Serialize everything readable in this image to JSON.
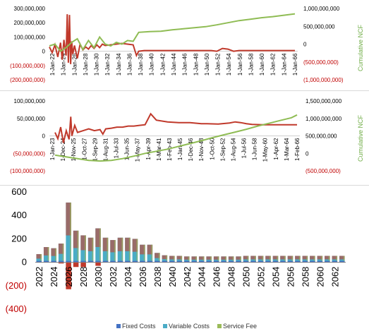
{
  "charts": [
    {
      "type": "line",
      "y2label": "Cumulative NCF",
      "yticks": [
        "300,000,000",
        "200,000,000",
        "100,000,000",
        "0",
        "(100,000,000)",
        "(200,000,000)"
      ],
      "yticks_neg": [
        false,
        false,
        false,
        false,
        true,
        true
      ],
      "y2ticks": [
        "1,000,000,000",
        "500,000,000",
        "0",
        "(500,000,000)",
        "(1,000,000,000)"
      ],
      "y2ticks_neg": [
        false,
        false,
        false,
        true,
        true
      ],
      "xticks": [
        "1-Jan-22",
        "1-Jan-24",
        "1-Jan-26",
        "1-Jan-28",
        "1-Jan-30",
        "1-Jan-32",
        "1-Jan-34",
        "1-Jan-36",
        "1-Jan-38",
        "1-Jan-40",
        "1-Jan-42",
        "1-Jan-44",
        "1-Jan-46",
        "1-Jan-48",
        "1-Jan-50",
        "1-Jan-52",
        "1-Jan-54",
        "1-Jan-56",
        "1-Jan-58",
        "1-Jan-60",
        "1-Jan-62",
        "1-Jan-64",
        "1-Jan-66"
      ]
    },
    {
      "type": "line",
      "y2label": "Cumulative NCF",
      "yticks": [
        "100,000,000",
        "50,000,000",
        "0",
        "(50,000,000)",
        "(100,000,000)"
      ],
      "yticks_neg": [
        false,
        false,
        false,
        true,
        true
      ],
      "y2ticks": [
        "1,500,000,000",
        "1,000,000,000",
        "500,000,000",
        "0",
        "(500,000,000)"
      ],
      "y2ticks_neg": [
        false,
        false,
        false,
        false,
        true
      ],
      "xticks": [
        "1-Jan-23",
        "1-Dec-24",
        "1-Nov-25",
        "1-Oct-27",
        "1-Sep-29",
        "1-Aug-31",
        "1-Jul-33",
        "1-Jun-35",
        "1-May-37",
        "1-Apr-39",
        "1-Mar-41",
        "1-Feb-43",
        "1-Jan-45",
        "1-Dec-46",
        "1-Nov-48",
        "1-Oct-50",
        "1-Sep-52",
        "1-Aug-54",
        "1-Jul-56",
        "1-Jun-58",
        "1-May-60",
        "1-Apr-62",
        "1-Mar-64",
        "1-Feb-66"
      ]
    },
    {
      "type": "bar",
      "yticks": [
        "600",
        "400",
        "200",
        "0",
        "(200)",
        "(400)"
      ],
      "yticks_neg": [
        false,
        false,
        false,
        false,
        true,
        true
      ],
      "xticks": [
        "2022",
        "2024",
        "2026",
        "2028",
        "2030",
        "2032",
        "2034",
        "2036",
        "2038",
        "2040",
        "2042",
        "2044",
        "2046",
        "2048",
        "2050",
        "2052",
        "2054",
        "2056",
        "2058",
        "2060",
        "2062"
      ],
      "legend": [
        "Fixed Costs",
        "Variable Costs",
        "Service Fee"
      ],
      "colors": {
        "fixed": "#4472c4",
        "variable": "#4bacc6",
        "service": "#9bbb59",
        "red": "#c0392b"
      }
    }
  ],
  "chart_data": [
    {
      "type": "line",
      "ylim": [
        -200000000,
        300000000
      ],
      "y2lim": [
        -1000000000,
        1000000000
      ],
      "series": [
        {
          "color": "#c0392b",
          "axis": "y",
          "x": [
            2022,
            2022.5,
            2023,
            2023.5,
            2024,
            2024.3,
            2024.6,
            2025,
            2025.2,
            2025.4,
            2025.6,
            2025.8,
            2026,
            2026.2,
            2026.5,
            2027,
            2027.5,
            2028,
            2028.5,
            2029,
            2029.5,
            2030,
            2030.5,
            2031,
            2031.5,
            2032,
            2033,
            2034,
            2035,
            2036,
            2037,
            2037.6,
            2038,
            2039,
            2040,
            2042,
            2044,
            2046,
            2048,
            2050,
            2051,
            2052,
            2053,
            2054,
            2055,
            2056,
            2058,
            2060,
            2062,
            2064,
            2066
          ],
          "y": [
            30000000,
            -10000000,
            45000000,
            -40000000,
            60000000,
            -60000000,
            80000000,
            -30000000,
            260000000,
            -80000000,
            255000000,
            -90000000,
            70000000,
            -20000000,
            40000000,
            -50000000,
            50000000,
            10000000,
            30000000,
            15000000,
            40000000,
            20000000,
            45000000,
            25000000,
            50000000,
            40000000,
            45000000,
            50000000,
            55000000,
            50000000,
            45000000,
            -30000000,
            0,
            5000000,
            5000000,
            5000000,
            5000000,
            5000000,
            5000000,
            5000000,
            5000000,
            0,
            20000000,
            15000000,
            0,
            5000000,
            5000000,
            5000000,
            5000000,
            5000000,
            5000000
          ]
        },
        {
          "color": "#8fbc54",
          "axis": "y2",
          "x": [
            2022,
            2023,
            2024,
            2025,
            2026,
            2027,
            2028,
            2029,
            2030,
            2031,
            2032,
            2033,
            2034,
            2035,
            2036,
            2037,
            2038,
            2040,
            2042,
            2044,
            2046,
            2048,
            2050,
            2052,
            2054,
            2056,
            2058,
            2060,
            2062,
            2064,
            2066
          ],
          "y": [
            -50000000,
            0,
            -200000000,
            -100000000,
            50000000,
            150000000,
            -150000000,
            100000000,
            -100000000,
            200000000,
            0,
            -50000000,
            50000000,
            0,
            100000000,
            80000000,
            330000000,
            350000000,
            360000000,
            400000000,
            430000000,
            460000000,
            490000000,
            540000000,
            600000000,
            660000000,
            700000000,
            740000000,
            770000000,
            810000000,
            850000000
          ]
        }
      ]
    },
    {
      "type": "line",
      "ylim": [
        -100000000,
        100000000
      ],
      "y2lim": [
        -500000000,
        1500000000
      ],
      "series": [
        {
          "color": "#c0392b",
          "axis": "y",
          "x": [
            2023,
            2023.5,
            2024,
            2024.5,
            2025,
            2025.5,
            2025.8,
            2026,
            2026.5,
            2027,
            2028,
            2029,
            2030,
            2031,
            2031.5,
            2032,
            2033,
            2034,
            2035,
            2036,
            2037,
            2038,
            2039,
            2040,
            2041,
            2043,
            2045,
            2047,
            2049,
            2050,
            2052,
            2054,
            2055,
            2056,
            2057,
            2058,
            2060,
            2062,
            2064,
            2066
          ],
          "y": [
            10000000,
            -8000000,
            25000000,
            -20000000,
            15000000,
            -10000000,
            55000000,
            0,
            30000000,
            10000000,
            15000000,
            20000000,
            15000000,
            18000000,
            5000000,
            20000000,
            22000000,
            25000000,
            25000000,
            28000000,
            28000000,
            30000000,
            32000000,
            63000000,
            45000000,
            40000000,
            38000000,
            38000000,
            35000000,
            35000000,
            34000000,
            37000000,
            40000000,
            38000000,
            35000000,
            33000000,
            32000000,
            32000000,
            32000000,
            32000000
          ]
        },
        {
          "color": "#8fbc54",
          "axis": "y2",
          "x": [
            2023,
            2025,
            2027,
            2029,
            2031,
            2033,
            2035,
            2037,
            2039,
            2041,
            2043,
            2045,
            2047,
            2049,
            2051,
            2053,
            2055,
            2057,
            2059,
            2061,
            2063,
            2065,
            2066
          ],
          "y": [
            -50000000,
            -100000000,
            -150000000,
            -200000000,
            -220000000,
            -200000000,
            -150000000,
            -80000000,
            0,
            60000000,
            120000000,
            200000000,
            280000000,
            360000000,
            450000000,
            530000000,
            610000000,
            690000000,
            780000000,
            860000000,
            940000000,
            1020000000,
            1100000000
          ]
        }
      ]
    },
    {
      "type": "bar",
      "ylim": [
        -400,
        600
      ],
      "categories": [
        "2022",
        "2023",
        "2024",
        "2025",
        "2026",
        "2027",
        "2028",
        "2029",
        "2030",
        "2031",
        "2032",
        "2033",
        "2034",
        "2035",
        "2036",
        "2037",
        "2038",
        "2039",
        "2040",
        "2041",
        "2042",
        "2043",
        "2044",
        "2045",
        "2046",
        "2047",
        "2048",
        "2049",
        "2050",
        "2051",
        "2052",
        "2053",
        "2054",
        "2055",
        "2056",
        "2057",
        "2058",
        "2059",
        "2060",
        "2061",
        "2062",
        "2063"
      ],
      "series": [
        {
          "name": "Fixed Costs",
          "values": [
            5,
            5,
            5,
            5,
            5,
            5,
            5,
            5,
            5,
            5,
            5,
            5,
            5,
            5,
            5,
            5,
            5,
            5,
            5,
            5,
            5,
            5,
            5,
            5,
            5,
            5,
            5,
            5,
            5,
            5,
            5,
            5,
            5,
            5,
            5,
            5,
            5,
            5,
            5,
            5,
            5,
            5
          ]
        },
        {
          "name": "Variable Costs",
          "values": [
            70,
            130,
            120,
            160,
            510,
            270,
            230,
            210,
            290,
            210,
            190,
            210,
            210,
            200,
            150,
            150,
            80,
            60,
            55,
            55,
            50,
            50,
            50,
            50,
            50,
            50,
            50,
            50,
            55,
            55,
            55,
            55,
            55,
            55,
            55,
            55,
            55,
            55,
            55,
            55,
            55,
            55
          ]
        },
        {
          "name": "Service Fee",
          "values": [
            20,
            20,
            25,
            25,
            30,
            50,
            30,
            30,
            50,
            50,
            40,
            40,
            40,
            40,
            20,
            20,
            20,
            20,
            10,
            10,
            10,
            10,
            10,
            10,
            10,
            10,
            10,
            10,
            10,
            10,
            10,
            10,
            10,
            10,
            10,
            10,
            10,
            10,
            10,
            10,
            10,
            10
          ]
        }
      ],
      "negative": {
        "name": "",
        "color": "#c0392b",
        "values": [
          0,
          0,
          0,
          -10,
          -230,
          -40,
          -40,
          0,
          -30,
          0,
          0,
          0,
          0,
          0,
          0,
          0,
          0,
          0,
          0,
          0,
          0,
          0,
          0,
          0,
          0,
          0,
          0,
          0,
          0,
          0,
          0,
          0,
          0,
          0,
          0,
          0,
          0,
          0,
          0,
          0,
          0,
          0
        ]
      }
    }
  ]
}
